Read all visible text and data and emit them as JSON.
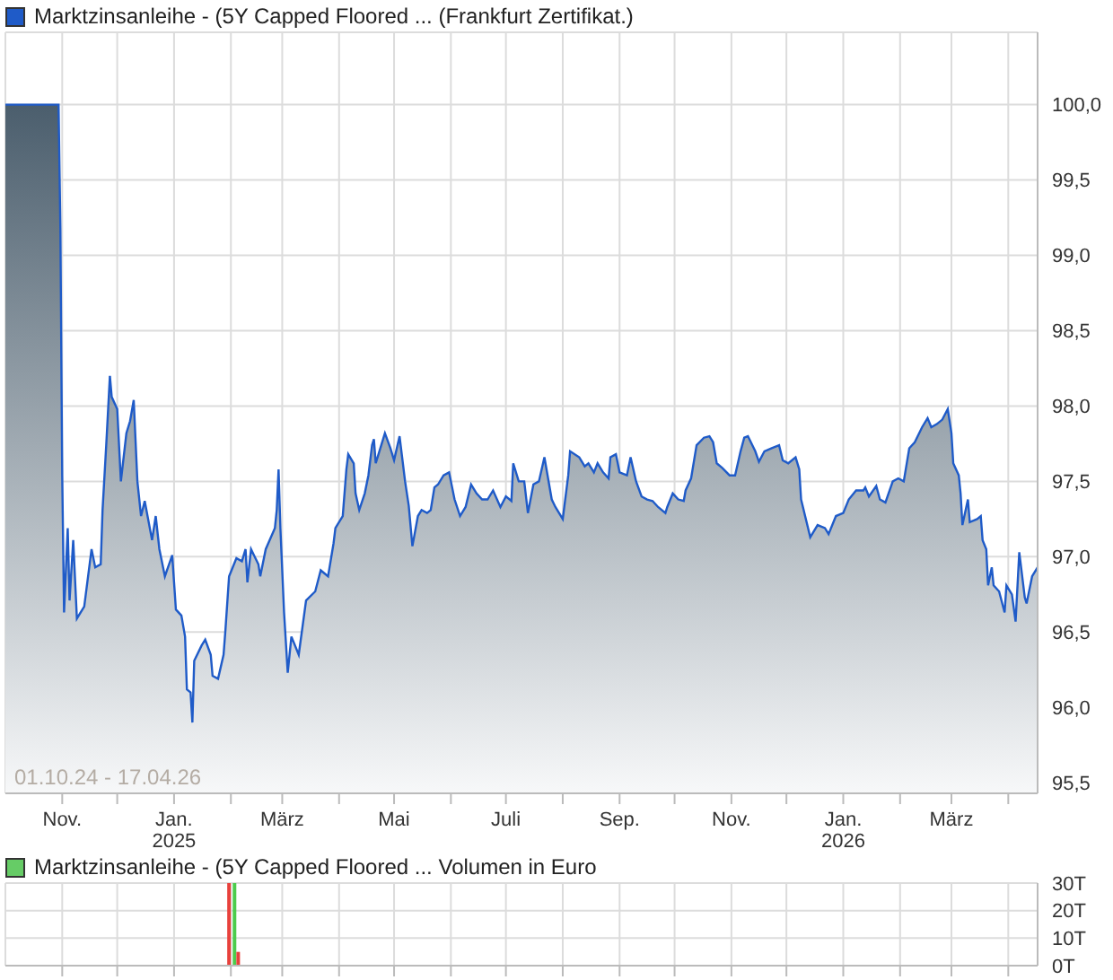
{
  "chart_data": [
    {
      "type": "area",
      "legend": "top left",
      "grid": true,
      "xlim": [
        "2024-10-01",
        "2026-04-17"
      ],
      "xticks": [
        {
          "value": "2024-11-01",
          "label": "Nov."
        },
        {
          "value": "2024-12-01",
          "label": null
        },
        {
          "value": "2025-01-01",
          "label": "Jan. 2025"
        },
        {
          "value": "2025-02-01",
          "label": null
        },
        {
          "value": "2025-03-01",
          "label": "März"
        },
        {
          "value": "2025-04-01",
          "label": null
        },
        {
          "value": "2025-05-01",
          "label": "Mai"
        },
        {
          "value": "2025-06-01",
          "label": null
        },
        {
          "value": "2025-07-01",
          "label": "Juli"
        },
        {
          "value": "2025-08-01",
          "label": null
        },
        {
          "value": "2025-09-01",
          "label": "Sep."
        },
        {
          "value": "2025-10-01",
          "label": null
        },
        {
          "value": "2025-11-01",
          "label": "Nov."
        },
        {
          "value": "2025-12-01",
          "label": null
        },
        {
          "value": "2026-01-01",
          "label": "Jan. 2026"
        },
        {
          "value": "2026-02-01",
          "label": null
        },
        {
          "value": "2026-03-01",
          "label": "März"
        },
        {
          "value": "2026-04-01",
          "label": null
        }
      ],
      "ylim": [
        95.43,
        100.48
      ],
      "yticks": [
        {
          "value": 95.5,
          "label": "95,5"
        },
        {
          "value": 96,
          "label": "96,0"
        },
        {
          "value": 96.5,
          "label": "96,5"
        },
        {
          "value": 97,
          "label": "97,0"
        },
        {
          "value": 97.5,
          "label": "97,5"
        },
        {
          "value": 98,
          "label": "98,0"
        },
        {
          "value": 98.5,
          "label": "98,5"
        },
        {
          "value": 99,
          "label": "99,0"
        },
        {
          "value": 99.5,
          "label": "99,5"
        },
        {
          "value": 100,
          "label": "100,0"
        }
      ],
      "annotations": [
        "01.10.24 - 17.04.26"
      ],
      "x": [
        "2024-10-01",
        "2024-10-30",
        "2024-10-31",
        "2024-11-01",
        "2024-11-02",
        "2024-11-04",
        "2024-11-05",
        "2024-11-07",
        "2024-11-09",
        "2024-11-13",
        "2024-11-17",
        "2024-11-19",
        "2024-11-22",
        "2024-11-23",
        "2024-11-25",
        "2024-11-27",
        "2024-11-28",
        "2024-12-01",
        "2024-12-03",
        "2024-12-06",
        "2024-12-08",
        "2024-12-10",
        "2024-12-12",
        "2024-12-14",
        "2024-12-16",
        "2024-12-20",
        "2024-12-22",
        "2024-12-24",
        "2024-12-27",
        "2024-12-31",
        "2025-01-02",
        "2025-01-05",
        "2025-01-07",
        "2025-01-08",
        "2025-01-10",
        "2025-01-11",
        "2025-01-12",
        "2025-01-16",
        "2025-01-18",
        "2025-01-21",
        "2025-01-22",
        "2025-01-25",
        "2025-01-28",
        "2025-01-29",
        "2025-01-31",
        "2025-02-04",
        "2025-02-07",
        "2025-02-09",
        "2025-02-10",
        "2025-02-12",
        "2025-02-16",
        "2025-02-17",
        "2025-02-20",
        "2025-02-25",
        "2025-02-26",
        "2025-02-27",
        "2025-02-28",
        "2025-03-02",
        "2025-03-04",
        "2025-03-06",
        "2025-03-10",
        "2025-03-14",
        "2025-03-19",
        "2025-03-22",
        "2025-03-26",
        "2025-03-29",
        "2025-03-30",
        "2025-04-03",
        "2025-04-05",
        "2025-04-06",
        "2025-04-09",
        "2025-04-10",
        "2025-04-12",
        "2025-04-15",
        "2025-04-17",
        "2025-04-19",
        "2025-04-20",
        "2025-04-21",
        "2025-04-24",
        "2025-04-26",
        "2025-04-29",
        "2025-05-01",
        "2025-05-04",
        "2025-05-07",
        "2025-05-09",
        "2025-05-11",
        "2025-05-14",
        "2025-05-16",
        "2025-05-19",
        "2025-05-21",
        "2025-05-23",
        "2025-05-25",
        "2025-05-28",
        "2025-05-31",
        "2025-06-03",
        "2025-06-06",
        "2025-06-09",
        "2025-06-12",
        "2025-06-15",
        "2025-06-18",
        "2025-06-21",
        "2025-06-24",
        "2025-06-28",
        "2025-07-01",
        "2025-07-04",
        "2025-07-05",
        "2025-07-08",
        "2025-07-11",
        "2025-07-13",
        "2025-07-16",
        "2025-07-19",
        "2025-07-22",
        "2025-07-26",
        "2025-07-28",
        "2025-08-01",
        "2025-08-04",
        "2025-08-05",
        "2025-08-10",
        "2025-08-13",
        "2025-08-15",
        "2025-08-18",
        "2025-08-20",
        "2025-08-23",
        "2025-08-26",
        "2025-08-27",
        "2025-08-30",
        "2025-09-01",
        "2025-09-05",
        "2025-09-07",
        "2025-09-10",
        "2025-09-13",
        "2025-09-16",
        "2025-09-19",
        "2025-09-22",
        "2025-09-26",
        "2025-09-27",
        "2025-09-30",
        "2025-10-03",
        "2025-10-06",
        "2025-10-07",
        "2025-10-10",
        "2025-10-13",
        "2025-10-17",
        "2025-10-20",
        "2025-10-22",
        "2025-10-24",
        "2025-10-27",
        "2025-10-31",
        "2025-11-03",
        "2025-11-06",
        "2025-11-08",
        "2025-11-10",
        "2025-11-14",
        "2025-11-16",
        "2025-11-19",
        "2025-11-23",
        "2025-11-27",
        "2025-11-29",
        "2025-12-02",
        "2025-12-06",
        "2025-12-08",
        "2025-12-09",
        "2025-12-12",
        "2025-12-14",
        "2025-12-18",
        "2025-12-22",
        "2025-12-24",
        "2025-12-28",
        "2026-01-01",
        "2026-01-04",
        "2026-01-08",
        "2026-01-12",
        "2026-01-13",
        "2026-01-15",
        "2026-01-19",
        "2026-01-21",
        "2026-01-24",
        "2026-01-28",
        "2026-01-31",
        "2026-02-03",
        "2026-02-06",
        "2026-02-09",
        "2026-02-13",
        "2026-02-16",
        "2026-02-18",
        "2026-02-21",
        "2026-02-24",
        "2026-02-27",
        "2026-03-01",
        "2026-03-02",
        "2026-03-05",
        "2026-03-06",
        "2026-03-07",
        "2026-03-10",
        "2026-03-11",
        "2026-03-15",
        "2026-03-17",
        "2026-03-18",
        "2026-03-20",
        "2026-03-21",
        "2026-03-23",
        "2026-03-24",
        "2026-03-27",
        "2026-03-30",
        "2026-03-31",
        "2026-04-03",
        "2026-04-05",
        "2026-04-07",
        "2026-04-10",
        "2026-04-11",
        "2026-04-14",
        "2026-04-17"
      ],
      "series": [
        {
          "name": "Marktzinsanleihe - (5Y Capped Floored ... (Frankfurt Zertifikat.)",
          "color": "#1f5bc8",
          "values": [
            100.0,
            100.0,
            99.18,
            97.54,
            96.63,
            97.19,
            96.71,
            97.11,
            96.59,
            96.67,
            97.05,
            96.93,
            96.95,
            97.31,
            97.74,
            98.2,
            98.06,
            97.98,
            97.5,
            97.82,
            97.9,
            98.04,
            97.5,
            97.27,
            97.37,
            97.11,
            97.27,
            97.05,
            96.87,
            97.01,
            96.65,
            96.61,
            96.47,
            96.12,
            96.1,
            95.9,
            96.31,
            96.41,
            96.45,
            96.35,
            96.21,
            96.19,
            96.35,
            96.51,
            96.87,
            96.99,
            96.97,
            97.05,
            96.83,
            97.05,
            96.95,
            96.87,
            97.05,
            97.19,
            97.31,
            97.58,
            97.19,
            96.63,
            96.23,
            96.47,
            96.35,
            96.71,
            96.77,
            96.91,
            96.87,
            97.09,
            97.19,
            97.27,
            97.58,
            97.68,
            97.62,
            97.42,
            97.31,
            97.42,
            97.54,
            97.74,
            97.78,
            97.62,
            97.74,
            97.82,
            97.72,
            97.64,
            97.8,
            97.5,
            97.34,
            97.07,
            97.27,
            97.31,
            97.29,
            97.31,
            97.46,
            97.48,
            97.54,
            97.56,
            97.38,
            97.27,
            97.33,
            97.48,
            97.42,
            97.38,
            97.38,
            97.44,
            97.33,
            97.4,
            97.37,
            97.62,
            97.5,
            97.5,
            97.29,
            97.48,
            97.5,
            97.66,
            97.38,
            97.33,
            97.25,
            97.54,
            97.7,
            97.66,
            97.6,
            97.62,
            97.56,
            97.62,
            97.56,
            97.52,
            97.66,
            97.68,
            97.56,
            97.54,
            97.66,
            97.5,
            97.4,
            97.38,
            97.37,
            97.33,
            97.29,
            97.33,
            97.42,
            97.38,
            97.37,
            97.44,
            97.52,
            97.74,
            97.79,
            97.8,
            97.76,
            97.62,
            97.59,
            97.54,
            97.54,
            97.7,
            97.79,
            97.8,
            97.7,
            97.63,
            97.7,
            97.72,
            97.74,
            97.64,
            97.62,
            97.66,
            97.58,
            97.38,
            97.23,
            97.13,
            97.21,
            97.19,
            97.15,
            97.27,
            97.29,
            97.38,
            97.44,
            97.44,
            97.46,
            97.4,
            97.47,
            97.38,
            97.36,
            97.5,
            97.52,
            97.5,
            97.72,
            97.76,
            97.86,
            97.92,
            97.86,
            97.88,
            97.91,
            97.98,
            97.82,
            97.62,
            97.54,
            97.42,
            97.21,
            97.38,
            97.23,
            97.25,
            97.27,
            97.11,
            97.05,
            96.81,
            96.93,
            96.81,
            96.77,
            96.63,
            96.81,
            96.75,
            96.57,
            97.03,
            96.73,
            96.69,
            96.87,
            96.93
          ]
        }
      ]
    },
    {
      "type": "bar",
      "legend": "top left",
      "grid": true,
      "tick_labels": "y",
      "xlim": [
        "2024-10-01",
        "2026-04-17"
      ],
      "xticks": [
        {
          "value": "2024-11-01",
          "label": null
        },
        {
          "value": "2024-12-01",
          "label": null
        },
        {
          "value": "2025-01-01",
          "label": null
        },
        {
          "value": "2025-02-01",
          "label": null
        },
        {
          "value": "2025-03-01",
          "label": null
        },
        {
          "value": "2025-04-01",
          "label": null
        },
        {
          "value": "2025-05-01",
          "label": null
        },
        {
          "value": "2025-06-01",
          "label": null
        },
        {
          "value": "2025-07-01",
          "label": null
        },
        {
          "value": "2025-08-01",
          "label": null
        },
        {
          "value": "2025-09-01",
          "label": null
        },
        {
          "value": "2025-10-01",
          "label": null
        },
        {
          "value": "2025-11-01",
          "label": null
        },
        {
          "value": "2025-12-01",
          "label": null
        },
        {
          "value": "2026-01-01",
          "label": null
        },
        {
          "value": "2026-02-01",
          "label": null
        },
        {
          "value": "2026-03-01",
          "label": null
        },
        {
          "value": "2026-04-01",
          "label": null
        }
      ],
      "ylim": [
        0,
        30
      ],
      "yticks": [
        {
          "value": 0,
          "label": "0T"
        },
        {
          "value": 10,
          "label": "10T"
        },
        {
          "value": 20,
          "label": "20T"
        },
        {
          "value": 30,
          "label": "30T"
        }
      ],
      "x": [
        "2025-01-31",
        "2025-02-03",
        "2025-02-05"
      ],
      "series": [
        {
          "name": "Marktzinsanleihe - (5Y Capped Floored ... Volumen in Euro",
          "color": "#66cc66",
          "colors": [
            "#e8413c",
            "#4ccc4c",
            "#e8413c"
          ],
          "values": [
            30,
            30,
            5
          ]
        }
      ]
    }
  ]
}
